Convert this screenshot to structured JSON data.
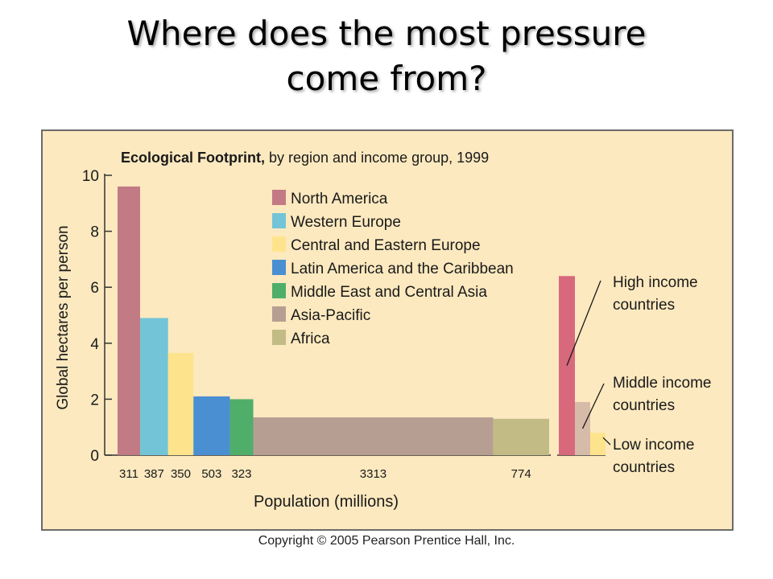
{
  "slide": {
    "title_line1": "Where does the most pressure",
    "title_line2": "come from?",
    "copyright": "Copyright © 2005 Pearson Prentice Hall, Inc."
  },
  "colors": {
    "panel_bg": "#fce9bf",
    "panel_border": "#6b6b6b"
  },
  "chart_data": {
    "type": "bar",
    "title_bold": "Ecological Footprint,",
    "title_rest": " by region and income group, 1999",
    "xlabel": "Population (millions)",
    "ylabel": "Global hectares per person",
    "ylim": [
      0,
      10
    ],
    "yticks": [
      "0",
      "2",
      "4",
      "6",
      "8",
      "10"
    ],
    "bar_width_encoding": "population (millions)",
    "regions": [
      {
        "name": "North America",
        "population": 311,
        "pop_label": "311",
        "value": 9.6,
        "color": "#c27a84"
      },
      {
        "name": "Western Europe",
        "population": 387,
        "pop_label": "387",
        "value": 4.9,
        "color": "#74c4d7"
      },
      {
        "name": "Central and Eastern Europe",
        "population": 350,
        "pop_label": "350",
        "value": 3.65,
        "color": "#fde48c"
      },
      {
        "name": "Latin America and the Caribbean",
        "population": 503,
        "pop_label": "503",
        "value": 2.1,
        "color": "#4a8fd2"
      },
      {
        "name": "Middle East and Central Asia",
        "population": 323,
        "pop_label": "323",
        "value": 2.0,
        "color": "#4fae6a"
      },
      {
        "name": "Asia-Pacific",
        "population": 3313,
        "pop_label": "3313",
        "value": 1.35,
        "color": "#b79e92"
      },
      {
        "name": "Africa",
        "population": 774,
        "pop_label": "774",
        "value": 1.3,
        "color": "#c2bb85"
      }
    ],
    "income_groups": [
      {
        "name_line1": "High income",
        "name_line2": "countries",
        "value": 6.4,
        "color": "#d8697d"
      },
      {
        "name_line1": "Middle income",
        "name_line2": "countries",
        "value": 1.9,
        "color": "#d7bba9"
      },
      {
        "name_line1": "Low income",
        "name_line2": "countries",
        "value": 0.8,
        "color": "#fde48c"
      }
    ]
  }
}
